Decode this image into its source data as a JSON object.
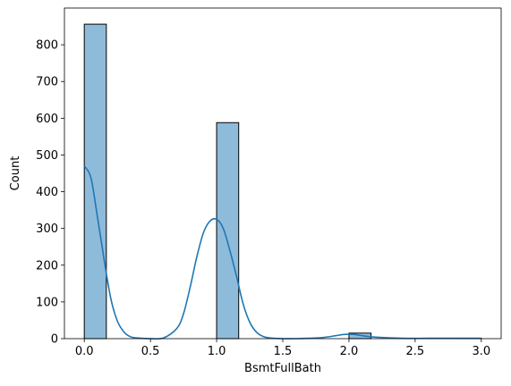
{
  "chart_data": {
    "type": "bar",
    "xlabel": "BsmtFullBath",
    "ylabel": "Count",
    "xlim": [
      -0.15,
      3.15
    ],
    "ylim": [
      0,
      900
    ],
    "xticks": [
      0.0,
      0.5,
      1.0,
      1.5,
      2.0,
      2.5,
      3.0
    ],
    "xtick_labels": [
      "0.0",
      "0.5",
      "1.0",
      "1.5",
      "2.0",
      "2.5",
      "3.0"
    ],
    "yticks": [
      0,
      100,
      200,
      300,
      400,
      500,
      600,
      700,
      800
    ],
    "ytick_labels": [
      "0",
      "100",
      "200",
      "300",
      "400",
      "500",
      "600",
      "700",
      "800"
    ],
    "bin_width": 0.1667,
    "bins": [
      {
        "x0": 0.0,
        "x1": 0.1667,
        "count": 856
      },
      {
        "x0": 1.0,
        "x1": 1.1667,
        "count": 588
      },
      {
        "x0": 2.0,
        "x1": 2.1667,
        "count": 15
      },
      {
        "x0": 2.8333,
        "x1": 3.0,
        "count": 1
      }
    ],
    "kde": {
      "name": "",
      "x": [
        0.0,
        0.05,
        0.1,
        0.15,
        0.2,
        0.25,
        0.3,
        0.35,
        0.4,
        0.5,
        0.6,
        0.7,
        0.75,
        0.8,
        0.85,
        0.9,
        0.95,
        1.0,
        1.05,
        1.1,
        1.15,
        1.2,
        1.25,
        1.3,
        1.35,
        1.4,
        1.5,
        1.6,
        1.7,
        1.8,
        1.9,
        1.95,
        2.0,
        2.05,
        2.1,
        2.2,
        2.4,
        2.6,
        2.8,
        3.0
      ],
      "y": [
        470,
        438,
        330,
        215,
        110,
        48,
        18,
        5,
        2,
        0,
        2,
        28,
        68,
        140,
        222,
        288,
        320,
        325,
        300,
        240,
        170,
        95,
        45,
        18,
        6,
        2,
        0,
        0,
        1,
        3,
        8,
        11,
        12,
        11,
        8,
        4,
        1,
        1,
        1,
        1
      ]
    },
    "grid": false,
    "colors": {
      "bar_fill": "#8fbbda",
      "bar_edge": "#000000",
      "kde_line": "#1f77b4",
      "axes": "#000000"
    }
  }
}
